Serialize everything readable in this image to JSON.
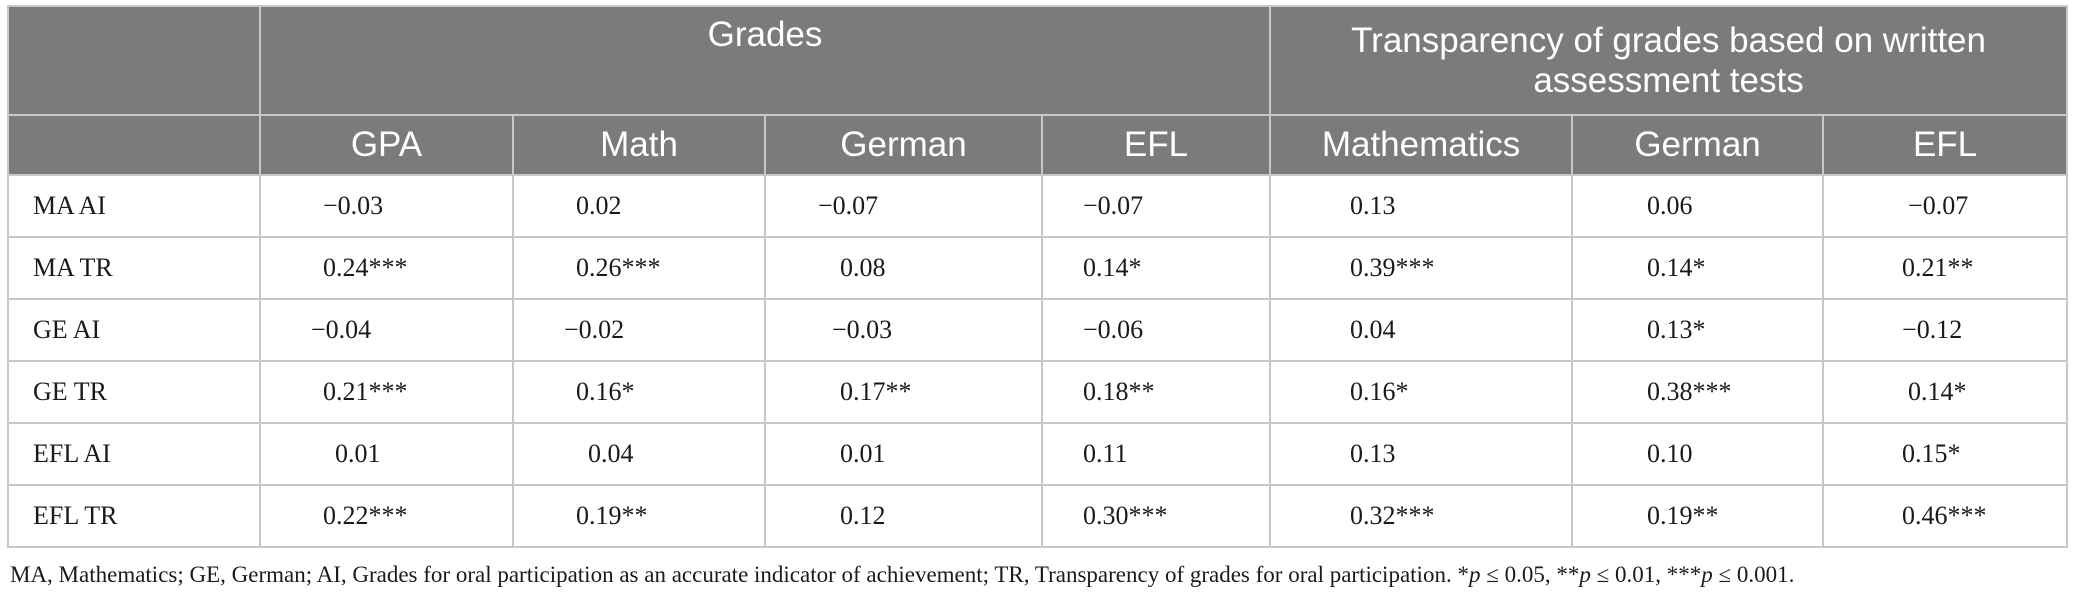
{
  "header": {
    "group_grades": "Grades",
    "group_transparency": "Transparency of grades based on written assessment tests",
    "columns": [
      "GPA",
      "Math",
      "German",
      "EFL",
      "Mathematics",
      "German",
      "EFL"
    ]
  },
  "rows": [
    {
      "label": "MA AI",
      "values": [
        "−0.03",
        "0.02",
        "−0.07",
        "−0.07",
        "0.13",
        "0.06",
        "−0.07"
      ]
    },
    {
      "label": "MA TR",
      "values": [
        "0.24***",
        "0.26***",
        "0.08",
        "0.14*",
        "0.39***",
        "0.14*",
        "0.21**"
      ]
    },
    {
      "label": "GE AI",
      "values": [
        "−0.04",
        "−0.02",
        "−0.03",
        "−0.06",
        "0.04",
        "0.13*",
        "−0.12"
      ]
    },
    {
      "label": "GE TR",
      "values": [
        "0.21***",
        "0.16*",
        "0.17**",
        "0.18**",
        "0.16*",
        "0.38***",
        "0.14*"
      ]
    },
    {
      "label": "EFL AI",
      "values": [
        "0.01",
        "0.04",
        "0.01",
        "0.11",
        "0.13",
        "0.10",
        "0.15*"
      ]
    },
    {
      "label": "EFL TR",
      "values": [
        "0.22***",
        "0.19**",
        "0.12",
        "0.30***",
        "0.32***",
        "0.19**",
        "0.46***"
      ]
    }
  ],
  "footnote": {
    "text": "MA, Mathematics; GE, German; AI, Grades for oral participation as an accurate indicator of achievement; TR, Transparency of grades for oral participation. *",
    "p1": "p",
    "t1": " ≤ 0.05, **",
    "p2": "p",
    "t2": " ≤ 0.01, ***",
    "p3": "p",
    "t3": " ≤ 0.001."
  }
}
